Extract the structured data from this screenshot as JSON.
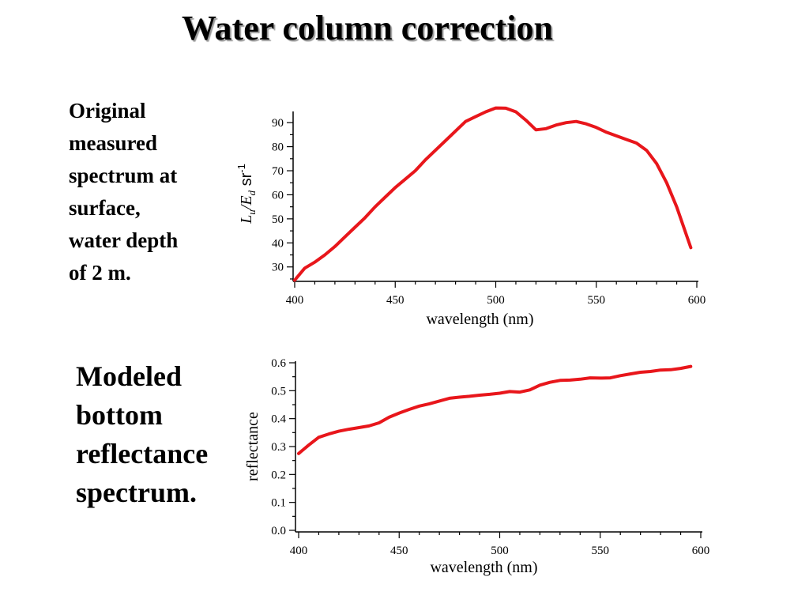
{
  "title": "Water column correction",
  "captions": {
    "top": [
      "Original",
      "measured",
      "spectrum at",
      "surface,",
      "water depth",
      "of 2 m."
    ],
    "bottom": [
      "Modeled",
      "bottom",
      "reflectance",
      "spectrum."
    ]
  },
  "colors": {
    "series": "#e8161b",
    "axis": "#000000",
    "title_shadow": "#9a9a9a"
  },
  "chart_data": [
    {
      "type": "line",
      "xlabel": "wavelength (nm)",
      "ylabel": "Lu/Ed sr-1",
      "ylabel_parts": {
        "main": "L",
        "sub1": "u",
        "slash": "/E",
        "sub2": "d",
        "unit": " sr",
        "sup": "-1"
      },
      "xlim": [
        400,
        600
      ],
      "ylim": [
        24,
        94
      ],
      "xticks": [
        400,
        450,
        500,
        550,
        600
      ],
      "xtick_labels": [
        "400",
        "450",
        "500",
        "550",
        "600"
      ],
      "yticks": [
        30,
        40,
        50,
        60,
        70,
        80,
        90
      ],
      "ytick_labels": [
        "30",
        "40",
        "50",
        "60",
        "70",
        "80",
        "90"
      ],
      "grid": false,
      "series": [
        {
          "x": [
            400,
            405,
            410,
            415,
            420,
            425,
            430,
            435,
            440,
            445,
            450,
            455,
            460,
            465,
            470,
            475,
            480,
            485,
            490,
            495,
            500,
            505,
            510,
            515,
            520,
            525,
            530,
            535,
            540,
            545,
            550,
            555,
            560,
            565,
            570,
            575,
            580,
            585,
            590,
            597
          ],
          "y": [
            24.5,
            29.5,
            32,
            35,
            38.5,
            42.5,
            46.5,
            50.5,
            55,
            59,
            63,
            66.5,
            70,
            74.5,
            78.5,
            82.5,
            86.5,
            90.5,
            92.5,
            94.5,
            96.5,
            96,
            94.5,
            91,
            87,
            87.5,
            89,
            90,
            90.5,
            89.5,
            88,
            86,
            84.5,
            83,
            81.5,
            78.5,
            73,
            65,
            55,
            38
          ]
        }
      ]
    },
    {
      "type": "line",
      "xlabel": "wavelength (nm)",
      "ylabel": "reflectance",
      "xlim": [
        400,
        600
      ],
      "ylim": [
        0,
        0.6
      ],
      "xticks": [
        400,
        450,
        500,
        550,
        600
      ],
      "xtick_labels": [
        "400",
        "450",
        "500",
        "550",
        "600"
      ],
      "yticks": [
        0.0,
        0.1,
        0.2,
        0.3,
        0.4,
        0.5,
        0.6
      ],
      "ytick_labels": [
        "0.0",
        "0.1",
        "0.2",
        "0.3",
        "0.4",
        "0.5",
        "0.6"
      ],
      "grid": false,
      "series": [
        {
          "x": [
            400,
            405,
            410,
            415,
            420,
            425,
            430,
            435,
            440,
            445,
            450,
            455,
            460,
            465,
            470,
            475,
            480,
            485,
            490,
            495,
            500,
            505,
            510,
            515,
            520,
            525,
            530,
            535,
            540,
            545,
            550,
            555,
            560,
            565,
            570,
            575,
            580,
            585,
            590,
            595
          ],
          "y": [
            0.275,
            0.305,
            0.333,
            0.345,
            0.355,
            0.362,
            0.368,
            0.374,
            0.385,
            0.405,
            0.42,
            0.433,
            0.445,
            0.453,
            0.463,
            0.473,
            0.477,
            0.48,
            0.484,
            0.487,
            0.491,
            0.497,
            0.495,
            0.503,
            0.52,
            0.53,
            0.537,
            0.538,
            0.541,
            0.546,
            0.545,
            0.546,
            0.554,
            0.56,
            0.566,
            0.569,
            0.574,
            0.575,
            0.58,
            0.587
          ]
        }
      ]
    }
  ]
}
